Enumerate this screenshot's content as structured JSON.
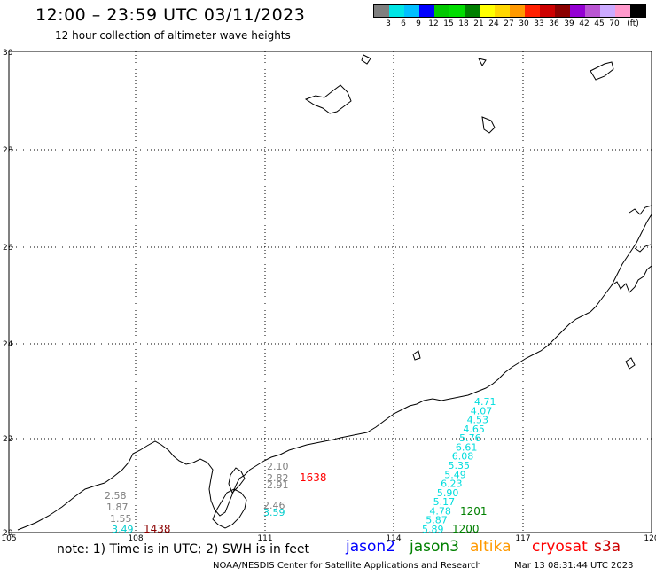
{
  "title": "12:00 – 23:59 UTC 03/11/2023",
  "subtitle": "12 hour collection of altimeter wave heights",
  "scale": {
    "colors": [
      "#7f7f7f",
      "#00e5e5",
      "#00bfff",
      "#0000ff",
      "#00c800",
      "#00dd00",
      "#008000",
      "#ffff00",
      "#ffd700",
      "#ff9900",
      "#ff2000",
      "#cc0000",
      "#8b0000",
      "#9400d3",
      "#ba55d3",
      "#ccaaff",
      "#ff99cc",
      "#000000"
    ],
    "labels": [
      "3",
      "6",
      "9",
      "12",
      "15",
      "18",
      "21",
      "24",
      "27",
      "30",
      "33",
      "36",
      "39",
      "42",
      "45",
      "70"
    ],
    "unit": "(ft)"
  },
  "map": {
    "lat_labels": [
      "30",
      "28",
      "26",
      "24",
      "22",
      "20"
    ],
    "lon_labels": [
      "105",
      "108",
      "111",
      "114",
      "117",
      "120"
    ]
  },
  "tracks": [
    {
      "satellite": "jason3",
      "color": "#7f7f7f",
      "values": [
        "2.58",
        "1.87",
        "1.55"
      ],
      "time": "1438",
      "time_color": "#8b0000",
      "last": "3.49"
    },
    {
      "satellite": "jason2",
      "color": "#7f7f7f",
      "values": [
        "2.10",
        "2.82",
        "2.91"
      ],
      "time": "1638",
      "time_color": "#ff0000",
      "cyan": [
        "2.46",
        "3.59"
      ]
    },
    {
      "satellite": "jason3",
      "color": "#00dddd",
      "values": [
        "4.71",
        "4.07",
        "4.53",
        "4.65",
        "5.76",
        "6.61",
        "6.08",
        "5.35",
        "5.49",
        "6.23",
        "5.90",
        "5.17",
        "4.78",
        "5.87",
        "5.89"
      ],
      "time1": "1201",
      "time2": "1200",
      "time_color": "#008000"
    }
  ],
  "note": "note: 1) Time is in UTC; 2) SWH is in feet",
  "satellites": [
    {
      "name": "jason2",
      "color": "#0000ff"
    },
    {
      "name": "jason3",
      "color": "#008000"
    },
    {
      "name": "altika",
      "color": "#ff9900"
    },
    {
      "name": "cryosat",
      "color": "#ff0000"
    },
    {
      "name": "s3a",
      "color": "#cc0000"
    }
  ],
  "footer_left": "NOAA/NESDIS Center for Satellite Applications and Research",
  "footer_right": "Mar 13 08:31:44 UTC 2023"
}
